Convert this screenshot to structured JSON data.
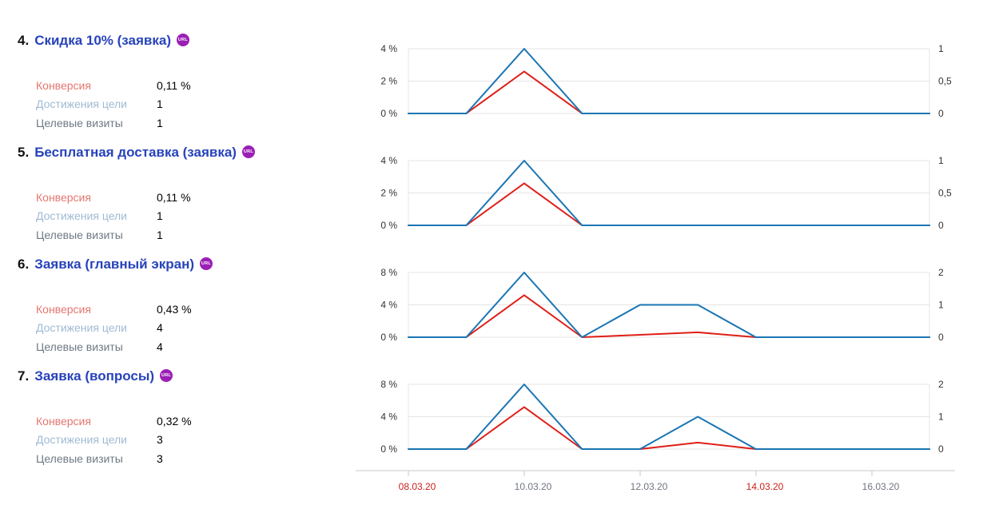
{
  "colors": {
    "title_link": "#2743ba",
    "badge_bg": "#9b1fb5",
    "conversion_label": "#e5766f",
    "reaches_label": "#9fbad3",
    "visits_label": "#6f7a84",
    "conversion_line": "#de1f18",
    "reaches_line": "#1a75b4",
    "grid": "#e4e4e4",
    "axis_line": "#c9c9c9",
    "tick_text": "#333333",
    "date_label": "#6f7680",
    "weekend_label": "#cb211c"
  },
  "goals": [
    {
      "index": "4.",
      "title": "Скидка 10% (заявка)",
      "badge": "URL",
      "stats": [
        {
          "label": "Конверсия",
          "value": "0,11 %"
        },
        {
          "label": "Достижения цели",
          "value": "1"
        },
        {
          "label": "Целевые визиты",
          "value": "1"
        }
      ]
    },
    {
      "index": "5.",
      "title": "Бесплатная доставка (заявка)",
      "badge": "URL",
      "stats": [
        {
          "label": "Конверсия",
          "value": "0,11 %"
        },
        {
          "label": "Достижения цели",
          "value": "1"
        },
        {
          "label": "Целевые визиты",
          "value": "1"
        }
      ]
    },
    {
      "index": "6.",
      "title": "Заявка (главный экран)",
      "badge": "URL",
      "stats": [
        {
          "label": "Конверсия",
          "value": "0,43 %"
        },
        {
          "label": "Достижения цели",
          "value": "4"
        },
        {
          "label": "Целевые визиты",
          "value": "4"
        }
      ]
    },
    {
      "index": "7.",
      "title": "Заявка (вопросы)",
      "badge": "URL",
      "stats": [
        {
          "label": "Конверсия",
          "value": "0,32 %"
        },
        {
          "label": "Достижения цели",
          "value": "3"
        },
        {
          "label": "Целевые визиты",
          "value": "3"
        }
      ]
    }
  ],
  "chart_data": [
    {
      "type": "line",
      "title": "Скидка 10% (заявка)",
      "x": [
        "08.03.20",
        "09.03.20",
        "10.03.20",
        "11.03.20",
        "12.03.20",
        "13.03.20",
        "14.03.20",
        "15.03.20",
        "16.03.20",
        "17.03.20"
      ],
      "left_axis": {
        "ticks": [
          "4 %",
          "2 %",
          "0 %"
        ],
        "max": 4,
        "unit": "%"
      },
      "right_axis": {
        "ticks": [
          "1",
          "0,5",
          "0"
        ],
        "max": 1
      },
      "series": [
        {
          "name": "Конверсия",
          "axis": "left",
          "color": "#de1f18",
          "values": [
            0,
            0,
            2.6,
            0,
            0,
            0,
            0,
            0,
            0,
            0
          ]
        },
        {
          "name": "Достижения цели",
          "axis": "right",
          "color": "#1a75b4",
          "values": [
            0,
            0,
            1,
            0,
            0,
            0,
            0,
            0,
            0,
            0
          ]
        }
      ]
    },
    {
      "type": "line",
      "title": "Бесплатная доставка (заявка)",
      "x": [
        "08.03.20",
        "09.03.20",
        "10.03.20",
        "11.03.20",
        "12.03.20",
        "13.03.20",
        "14.03.20",
        "15.03.20",
        "16.03.20",
        "17.03.20"
      ],
      "left_axis": {
        "ticks": [
          "4 %",
          "2 %",
          "0 %"
        ],
        "max": 4,
        "unit": "%"
      },
      "right_axis": {
        "ticks": [
          "1",
          "0,5",
          "0"
        ],
        "max": 1
      },
      "series": [
        {
          "name": "Конверсия",
          "axis": "left",
          "color": "#de1f18",
          "values": [
            0,
            0,
            2.6,
            0,
            0,
            0,
            0,
            0,
            0,
            0
          ]
        },
        {
          "name": "Достижения цели",
          "axis": "right",
          "color": "#1a75b4",
          "values": [
            0,
            0,
            1,
            0,
            0,
            0,
            0,
            0,
            0,
            0
          ]
        }
      ]
    },
    {
      "type": "line",
      "title": "Заявка (главный экран)",
      "x": [
        "08.03.20",
        "09.03.20",
        "10.03.20",
        "11.03.20",
        "12.03.20",
        "13.03.20",
        "14.03.20",
        "15.03.20",
        "16.03.20",
        "17.03.20"
      ],
      "left_axis": {
        "ticks": [
          "8 %",
          "4 %",
          "0 %"
        ],
        "max": 8,
        "unit": "%"
      },
      "right_axis": {
        "ticks": [
          "2",
          "1",
          "0"
        ],
        "max": 2
      },
      "series": [
        {
          "name": "Конверсия",
          "axis": "left",
          "color": "#de1f18",
          "values": [
            0,
            0,
            5.2,
            0,
            0.3,
            0.6,
            0,
            0,
            0,
            0
          ]
        },
        {
          "name": "Достижения цели",
          "axis": "right",
          "color": "#1a75b4",
          "values": [
            0,
            0,
            2,
            0,
            1,
            1,
            0,
            0,
            0,
            0
          ]
        }
      ]
    },
    {
      "type": "line",
      "title": "Заявка (вопросы)",
      "x": [
        "08.03.20",
        "09.03.20",
        "10.03.20",
        "11.03.20",
        "12.03.20",
        "13.03.20",
        "14.03.20",
        "15.03.20",
        "16.03.20",
        "17.03.20"
      ],
      "left_axis": {
        "ticks": [
          "8 %",
          "4 %",
          "0 %"
        ],
        "max": 8,
        "unit": "%"
      },
      "right_axis": {
        "ticks": [
          "2",
          "1",
          "0"
        ],
        "max": 2
      },
      "series": [
        {
          "name": "Конверсия",
          "axis": "left",
          "color": "#de1f18",
          "values": [
            0,
            0,
            5.2,
            0,
            0,
            0.8,
            0,
            0,
            0,
            0
          ]
        },
        {
          "name": "Достижения цели",
          "axis": "right",
          "color": "#1a75b4",
          "values": [
            0,
            0,
            2,
            0,
            0,
            1,
            0,
            0,
            0,
            0
          ]
        }
      ]
    }
  ],
  "x_axis": {
    "labels": [
      {
        "text": "08.03.20",
        "weekend": true
      },
      {
        "text": "10.03.20",
        "weekend": false
      },
      {
        "text": "12.03.20",
        "weekend": false
      },
      {
        "text": "14.03.20",
        "weekend": true
      },
      {
        "text": "16.03.20",
        "weekend": false
      }
    ]
  }
}
